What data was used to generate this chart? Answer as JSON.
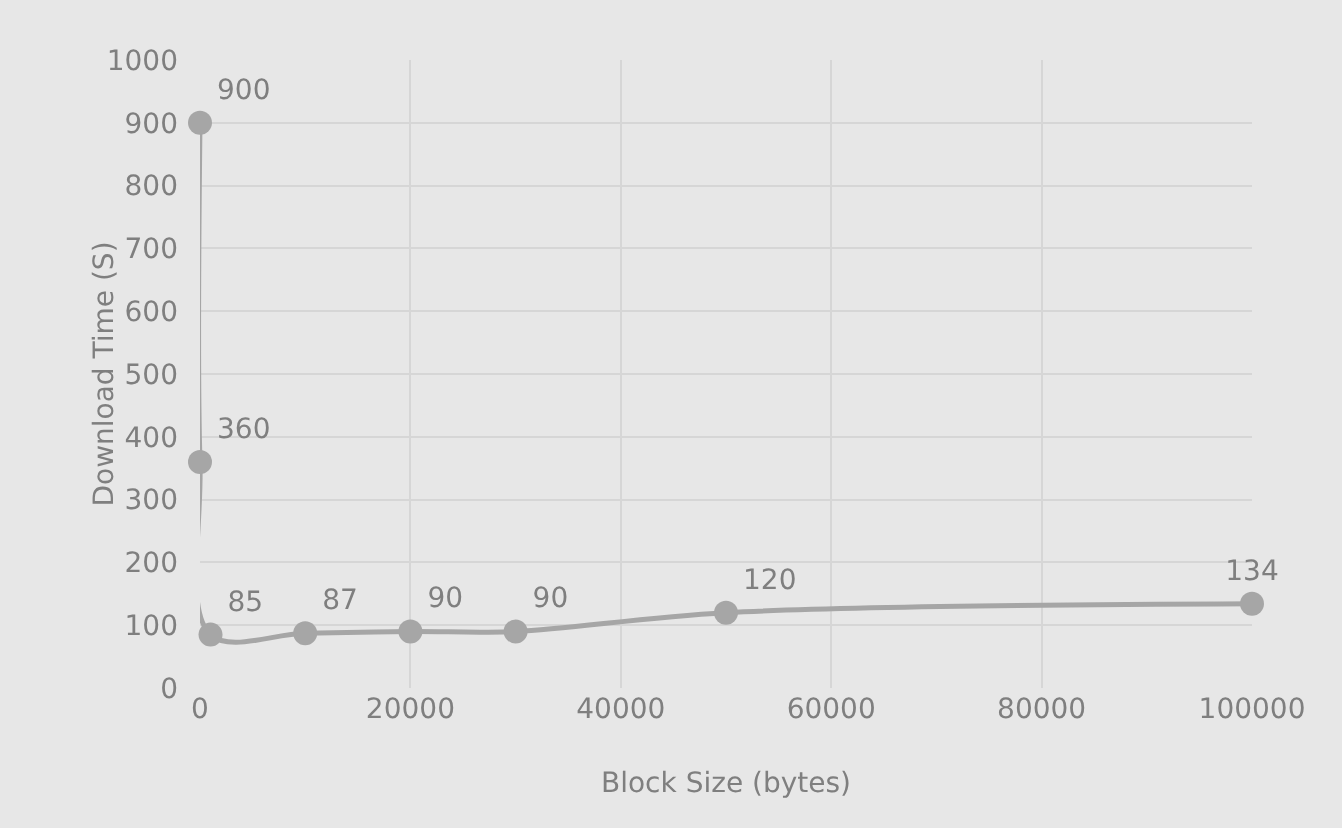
{
  "chart_data": {
    "type": "line",
    "xlabel": "Block Size (bytes)",
    "ylabel": "Download Time (S)",
    "x": [
      0,
      0,
      1000,
      10000,
      20000,
      30000,
      50000,
      100000
    ],
    "series": [
      {
        "color": "#a6a6a6",
        "values": [
          900,
          360,
          85,
          87,
          90,
          90,
          120,
          134
        ]
      }
    ],
    "xlim": [
      0,
      100000
    ],
    "xticks": [
      0,
      20000,
      40000,
      60000,
      80000,
      100000
    ],
    "ylim": [
      0,
      1000
    ],
    "yticks": [
      0,
      100,
      200,
      300,
      400,
      500,
      600,
      700,
      800,
      900,
      1000
    ],
    "grid": true,
    "marker": "circle",
    "data_labels": true
  }
}
